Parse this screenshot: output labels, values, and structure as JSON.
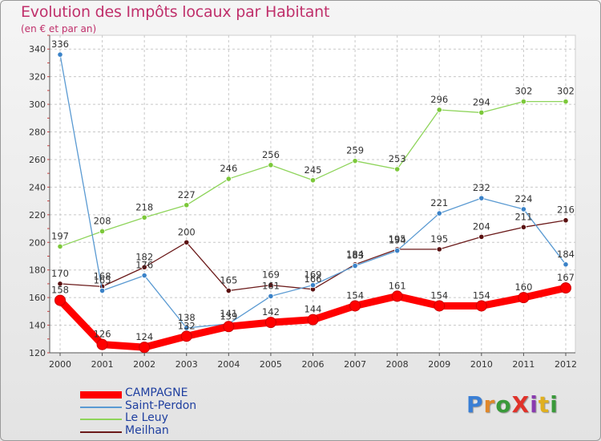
{
  "header": {
    "title": "Evolution des Impôts locaux par Habitant",
    "subtitle": "(en € et par an)"
  },
  "logo": {
    "text": "ProXiti",
    "colors": [
      "#3a7fd5",
      "#e0882a",
      "#3a9a3a",
      "#e0322a",
      "#8a3ab0",
      "#e0b020",
      "#3a9a3a"
    ]
  },
  "colors": {
    "title": "#c0306b",
    "legend_text": "#2040a0",
    "grid": "#c8c8c8",
    "axis": "#555555"
  },
  "chart_data": {
    "type": "line",
    "title": "Evolution des Impôts locaux par Habitant",
    "subtitle": "(en € et par an)",
    "x": [
      "2000",
      "2001",
      "2002",
      "2003",
      "2004",
      "2005",
      "2006",
      "2007",
      "2008",
      "2009",
      "2010",
      "2011",
      "2012"
    ],
    "ylim": [
      120,
      350
    ],
    "yticks": [
      120,
      140,
      160,
      180,
      200,
      220,
      240,
      260,
      280,
      300,
      320,
      340
    ],
    "grid": true,
    "legend_position": "bottom-left",
    "series": [
      {
        "name": "CAMPAGNE",
        "color": "#ff0000",
        "values": [
          158,
          126,
          124,
          132,
          139,
          142,
          144,
          154,
          161,
          154,
          154,
          160,
          167
        ]
      },
      {
        "name": "Saint-Perdon",
        "color": "#5a9ad2",
        "values": [
          336,
          165,
          176,
          138,
          141,
          161,
          169,
          183,
          194,
          221,
          232,
          224,
          184
        ]
      },
      {
        "name": "Le Leuy",
        "color": "#8ed45a",
        "values": [
          197,
          208,
          218,
          227,
          246,
          256,
          245,
          259,
          253,
          296,
          294,
          302,
          302
        ]
      },
      {
        "name": "Meilhan",
        "color": "#6b1a1a",
        "values": [
          170,
          168,
          182,
          200,
          165,
          169,
          166,
          184,
          195,
          195,
          204,
          211,
          216
        ]
      }
    ],
    "data_labels": [
      [
        "158",
        "126",
        "124",
        "132",
        "139",
        "142",
        "144",
        "154",
        "161",
        "154",
        "154",
        "160",
        "167"
      ],
      [
        "336",
        "165",
        "176",
        "138",
        "141",
        "161",
        "169",
        "183",
        "194",
        "221",
        "232",
        "224",
        "184"
      ],
      [
        "197",
        "208",
        "218",
        "227",
        "246",
        "256",
        "245",
        "259",
        "253",
        "296",
        "294",
        "302",
        "302"
      ],
      [
        "170",
        "168",
        "182",
        "200",
        "165",
        "169",
        "166",
        "184",
        "195",
        "195",
        "204",
        "211",
        "216"
      ]
    ]
  }
}
